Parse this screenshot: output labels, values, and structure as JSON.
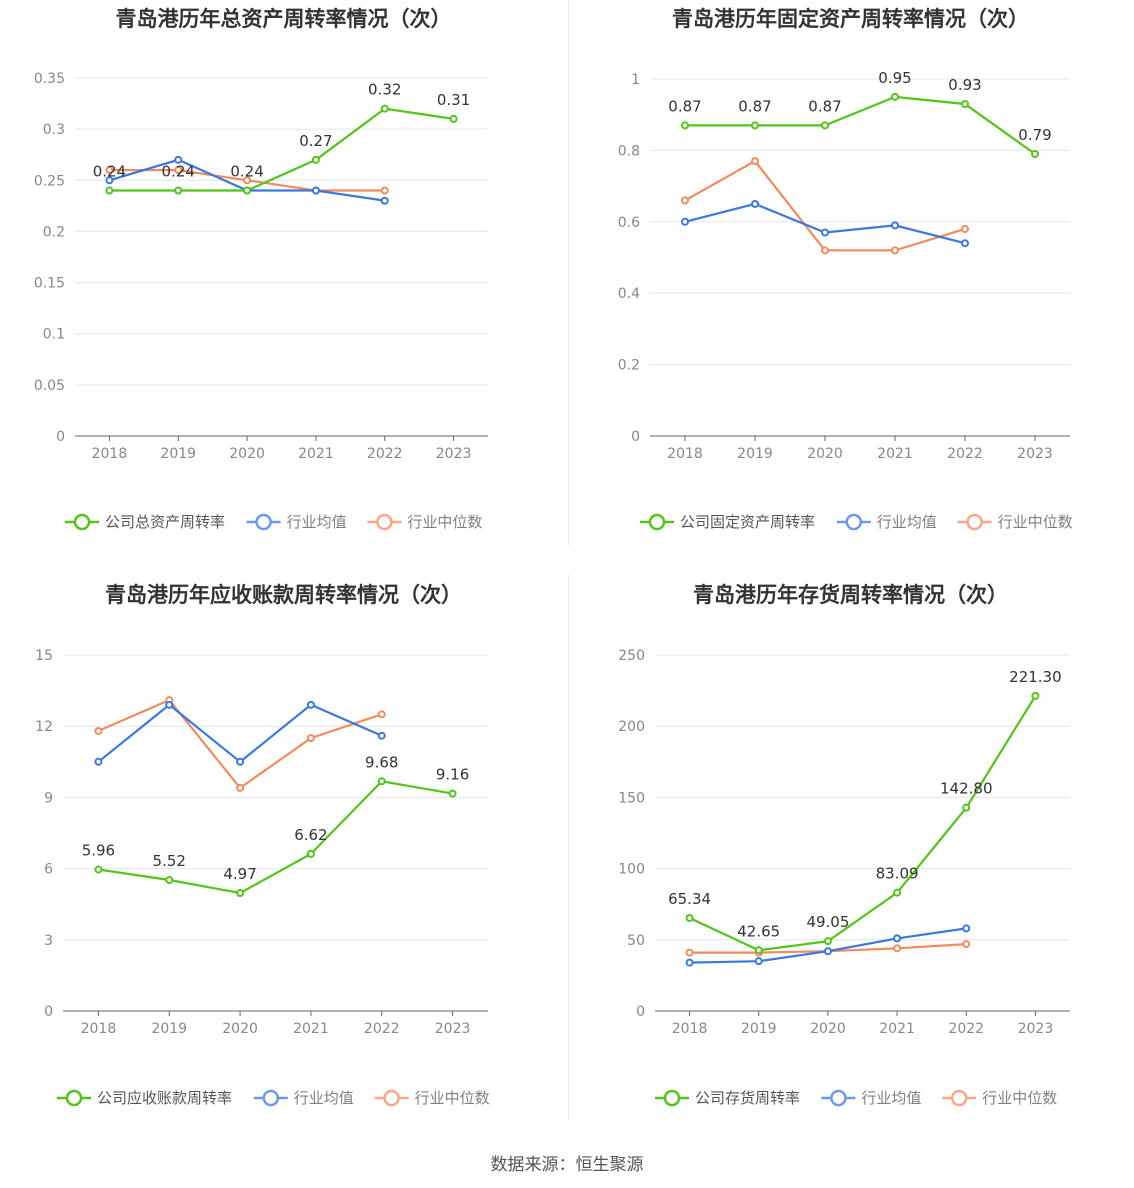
{
  "source_label": "数据来源：恒生聚源",
  "colors": {
    "company": "#52c41a",
    "avg": "#3a78e0",
    "median": "#f28b5b",
    "grid": "#e3e6ef",
    "axis": "#666666"
  },
  "chart_data": [
    {
      "type": "line",
      "title": "青岛港历年总资产周转率情况（次）",
      "categories": [
        "2018",
        "2019",
        "2020",
        "2021",
        "2022",
        "2023"
      ],
      "ylim": [
        0,
        0.35
      ],
      "yticks": [
        "0",
        "0.05",
        "0.1",
        "0.15",
        "0.2",
        "0.25",
        "0.3",
        "0.35"
      ],
      "grid": true,
      "legend_position": "bottom",
      "series": [
        {
          "name": "公司总资产周转率",
          "key": "company",
          "values": [
            0.24,
            0.24,
            0.24,
            0.27,
            0.32,
            0.31
          ],
          "labels": [
            "0.24",
            "0.24",
            "0.24",
            "0.27",
            "0.32",
            "0.31"
          ]
        },
        {
          "name": "行业均值",
          "key": "avg",
          "values": [
            0.25,
            0.27,
            0.24,
            0.24,
            0.23,
            null
          ]
        },
        {
          "name": "行业中位数",
          "key": "median",
          "values": [
            0.26,
            0.26,
            0.25,
            0.24,
            0.24,
            null
          ]
        }
      ]
    },
    {
      "type": "line",
      "title": "青岛港历年固定资产周转率情况（次）",
      "categories": [
        "2018",
        "2019",
        "2020",
        "2021",
        "2022",
        "2023"
      ],
      "ylim": [
        0,
        1
      ],
      "yticks": [
        "0",
        "0.2",
        "0.4",
        "0.6",
        "0.8",
        "1"
      ],
      "grid": true,
      "legend_position": "bottom",
      "series": [
        {
          "name": "公司固定资产周转率",
          "key": "company",
          "values": [
            0.87,
            0.87,
            0.87,
            0.95,
            0.93,
            0.79
          ],
          "labels": [
            "0.87",
            "0.87",
            "0.87",
            "0.95",
            "0.93",
            "0.79"
          ]
        },
        {
          "name": "行业均值",
          "key": "avg",
          "values": [
            0.6,
            0.65,
            0.57,
            0.59,
            0.54,
            null
          ]
        },
        {
          "name": "行业中位数",
          "key": "median",
          "values": [
            0.66,
            0.77,
            0.52,
            0.52,
            0.58,
            null
          ]
        }
      ]
    },
    {
      "type": "line",
      "title": "青岛港历年应收账款周转率情况（次）",
      "categories": [
        "2018",
        "2019",
        "2020",
        "2021",
        "2022",
        "2023"
      ],
      "ylim": [
        0,
        15
      ],
      "yticks": [
        "0",
        "3",
        "6",
        "9",
        "12",
        "15"
      ],
      "grid": true,
      "legend_position": "bottom",
      "series": [
        {
          "name": "公司应收账款周转率",
          "key": "company",
          "values": [
            5.96,
            5.52,
            4.97,
            6.62,
            9.68,
            9.16
          ],
          "labels": [
            "5.96",
            "5.52",
            "4.97",
            "6.62",
            "9.68",
            "9.16"
          ]
        },
        {
          "name": "行业均值",
          "key": "avg",
          "values": [
            10.5,
            12.9,
            10.5,
            12.9,
            11.6,
            null
          ]
        },
        {
          "name": "行业中位数",
          "key": "median",
          "values": [
            11.8,
            13.1,
            9.4,
            11.5,
            12.5,
            null
          ]
        }
      ]
    },
    {
      "type": "line",
      "title": "青岛港历年存货周转率情况（次）",
      "categories": [
        "2018",
        "2019",
        "2020",
        "2021",
        "2022",
        "2023"
      ],
      "ylim": [
        0,
        250
      ],
      "yticks": [
        "0",
        "50",
        "100",
        "150",
        "200",
        "250"
      ],
      "grid": true,
      "legend_position": "bottom",
      "series": [
        {
          "name": "公司存货周转率",
          "key": "company",
          "values": [
            65.34,
            42.65,
            49.05,
            83.09,
            142.8,
            221.3
          ],
          "labels": [
            "65.34",
            "42.65",
            "49.05",
            "83.09",
            "142.80",
            "221.30"
          ]
        },
        {
          "name": "行业均值",
          "key": "avg",
          "values": [
            34,
            35,
            42,
            51,
            58,
            null
          ]
        },
        {
          "name": "行业中位数",
          "key": "median",
          "values": [
            41,
            41,
            42,
            44,
            47,
            null
          ]
        }
      ]
    }
  ]
}
